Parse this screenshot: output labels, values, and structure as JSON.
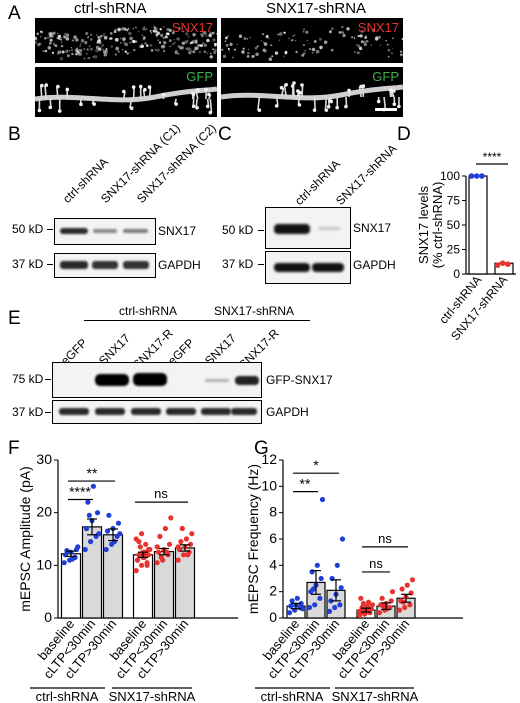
{
  "panels": {
    "A": {
      "letter": "A",
      "col_titles": [
        "ctrl-shRNA",
        "SNX17-shRNA"
      ],
      "channel_top": "SNX17",
      "channel_bottom": "GFP",
      "colors": {
        "snx17": "#e8322f",
        "gfp": "#3fb34a"
      }
    },
    "B": {
      "letter": "B",
      "lanes": [
        "ctrl-shRNA",
        "SNX17-shRNA (C1)",
        "SNX17-shRNA (C2)"
      ],
      "markers": [
        "50 kD",
        "37 kD"
      ],
      "bands": [
        "SNX17",
        "GAPDH"
      ]
    },
    "C": {
      "letter": "C",
      "lanes": [
        "ctrl-shRNA",
        "SNX17-shRNA"
      ],
      "markers": [
        "50 kD",
        "37 kD"
      ],
      "bands": [
        "SNX17",
        "GAPDH"
      ]
    },
    "D": {
      "letter": "D"
    },
    "E": {
      "letter": "E",
      "groups": [
        "ctrl-shRNA",
        "SNX17-shRNA"
      ],
      "lanes": [
        "eGFP",
        "SNX17",
        "SNX17-R",
        "eGFP",
        "SNX17",
        "SNX17-R"
      ],
      "markers": [
        "75 kD",
        "37 kD"
      ],
      "bands": [
        "GFP-SNX17",
        "GAPDH"
      ]
    },
    "F": {
      "letter": "F"
    },
    "G": {
      "letter": "G"
    }
  },
  "chart_data": [
    {
      "panel": "D",
      "type": "bar",
      "ylabel": "SNX17 levels\n(% ctrl-shRNA)",
      "categories": [
        "ctrl-shRNA",
        "SNX17-shRNA"
      ],
      "values": [
        100,
        11
      ],
      "ylim": [
        0,
        100
      ],
      "yticks": [
        0,
        25,
        50,
        75,
        100
      ],
      "points": [
        [
          100,
          100,
          100
        ],
        [
          9,
          11,
          10
        ]
      ],
      "point_colors": [
        "#1f3fd6",
        "#e8322f"
      ],
      "significance": [
        "****"
      ]
    },
    {
      "panel": "F",
      "type": "bar",
      "ylabel": "mEPSC Amplitude (pA)",
      "categories": [
        "baseline",
        "cLTP<30min",
        "cLTP>30min",
        "baseline",
        "cLTP<30min",
        "cLTP>30min"
      ],
      "group_labels": [
        "ctrl-shRNA",
        "SNX17-shRNA"
      ],
      "values": [
        12.2,
        17.3,
        15.8,
        12.0,
        12.6,
        13.3
      ],
      "errors": [
        0.5,
        1.5,
        1.1,
        0.5,
        0.6,
        0.6
      ],
      "ylim": [
        0,
        30
      ],
      "yticks": [
        0,
        10,
        20,
        30
      ],
      "bar_fills": [
        "#ffffff",
        "#d9d9d9",
        "#d9d9d9",
        "#ffffff",
        "#d9d9d9",
        "#d9d9d9"
      ],
      "point_colors": [
        "#1f3fd6",
        "#1f3fd6",
        "#1f3fd6",
        "#e8322f",
        "#e8322f",
        "#e8322f"
      ],
      "points": [
        [
          10.5,
          11.0,
          11.5,
          12.0,
          12.5,
          13.0,
          12.8,
          11.2,
          13.5
        ],
        [
          13.0,
          14.5,
          15.5,
          17.0,
          18.5,
          20.0,
          22.0,
          25.0,
          16.0,
          19.5
        ],
        [
          13.0,
          14.0,
          15.5,
          16.5,
          17.0,
          18.0,
          19.5,
          14.5,
          16.0
        ],
        [
          9.0,
          10.0,
          10.5,
          11.0,
          11.5,
          12.0,
          12.0,
          12.5,
          13.0,
          13.5,
          14.0,
          15.0,
          16.0,
          10.0,
          11.0,
          12.5,
          13.0,
          14.5,
          11.5
        ],
        [
          10.5,
          11.0,
          12.0,
          12.5,
          13.0,
          14.0,
          15.5,
          17.0,
          19.0,
          11.5,
          12.5,
          13.5
        ],
        [
          11.0,
          12.0,
          12.5,
          13.0,
          13.5,
          14.0,
          14.5,
          15.0,
          16.0,
          17.0,
          12.0,
          13.5
        ]
      ],
      "significance": [
        "****",
        "**",
        "ns"
      ]
    },
    {
      "panel": "G",
      "type": "bar",
      "ylabel": "mEPSC Frequency (Hz)",
      "categories": [
        "baseline",
        "cLTP<30min",
        "cLTP>30min",
        "baseline",
        "cLTP<30min",
        "cLTP>30min"
      ],
      "group_labels": [
        "ctrl-shRNA",
        "SNX17-shRNA"
      ],
      "values": [
        0.9,
        2.7,
        2.1,
        0.6,
        0.9,
        1.5
      ],
      "errors": [
        0.2,
        0.9,
        0.8,
        0.15,
        0.25,
        0.3
      ],
      "ylim": [
        0,
        12
      ],
      "yticks": [
        0,
        2,
        4,
        6,
        8,
        10,
        12
      ],
      "bar_fills": [
        "#ffffff",
        "#d9d9d9",
        "#d9d9d9",
        "#ffffff",
        "#d9d9d9",
        "#d9d9d9"
      ],
      "point_colors": [
        "#1f3fd6",
        "#1f3fd6",
        "#1f3fd6",
        "#e8322f",
        "#e8322f",
        "#e8322f"
      ],
      "points": [
        [
          0.4,
          0.6,
          0.8,
          0.9,
          1.0,
          1.1,
          1.3,
          1.5,
          0.7
        ],
        [
          0.8,
          1.0,
          1.5,
          2.0,
          2.5,
          3.0,
          3.5,
          4.0,
          9.0,
          2.2
        ],
        [
          0.5,
          0.8,
          1.0,
          1.3,
          1.8,
          2.3,
          3.0,
          4.0,
          6.0
        ],
        [
          0.2,
          0.3,
          0.4,
          0.5,
          0.6,
          0.7,
          0.8,
          0.9,
          1.0,
          1.1,
          1.2,
          0.5,
          0.3,
          0.6,
          1.5
        ],
        [
          0.4,
          0.6,
          0.8,
          1.0,
          1.1,
          1.3,
          1.5,
          0.7,
          2.0,
          0.9
        ],
        [
          0.6,
          0.8,
          1.0,
          1.3,
          1.6,
          1.9,
          2.2,
          2.5,
          2.9,
          1.2
        ]
      ],
      "significance": [
        "**",
        "*",
        "ns",
        "ns"
      ]
    }
  ]
}
